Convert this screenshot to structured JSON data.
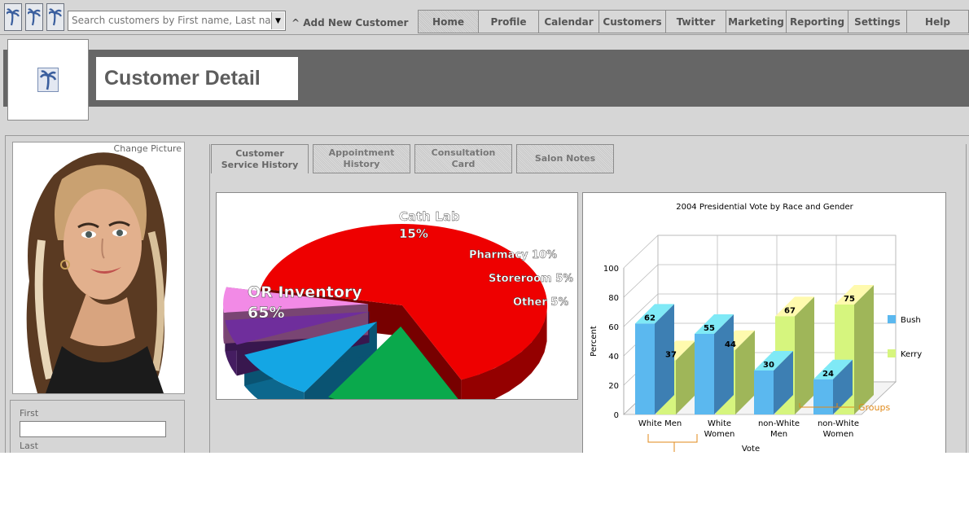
{
  "search": {
    "placeholder": "Search customers by First name, Last name"
  },
  "toolbar": {
    "add_customer_label": "Add New Customer",
    "add_icon": "caret-up-icon",
    "palm_icon": "palm-tree-icon"
  },
  "nav": [
    {
      "label": "Home",
      "active": true
    },
    {
      "label": "Profile"
    },
    {
      "label": "Calendar"
    },
    {
      "label": "Customers"
    },
    {
      "label": "Twitter"
    },
    {
      "label": "Marketing"
    },
    {
      "label": "Reporting"
    },
    {
      "label": "Settings"
    },
    {
      "label": "Help"
    }
  ],
  "page": {
    "title": "Customer Detail"
  },
  "profile": {
    "change_picture": "Change Picture",
    "first_label": "First",
    "last_label": "Last",
    "first_value": "",
    "last_value": ""
  },
  "tabs": [
    {
      "line1": "Customer",
      "line2": "Service History",
      "active": true
    },
    {
      "line1": "Appointment",
      "line2": "History"
    },
    {
      "line1": "Consultation",
      "line2": "Card"
    },
    {
      "line1": "",
      "line2": "Salon Notes"
    }
  ],
  "colors": {
    "or": "#ee0000",
    "cath": "#0aa94c",
    "pharmacy": "#14a6e4",
    "storeroom": "#6f2e9c",
    "other": "#f28ae6",
    "bush": "#5bb8ef",
    "kerry": "#d6f57e",
    "groups": "#e08a1a"
  },
  "chart_data": [
    {
      "type": "pie",
      "title": "",
      "slices": [
        {
          "label": "OR Inventory",
          "value": 65,
          "display": "65%"
        },
        {
          "label": "Cath Lab",
          "value": 15,
          "display": "15%"
        },
        {
          "label": "Pharmacy",
          "value": 10,
          "display": "10%"
        },
        {
          "label": "Storeroom",
          "value": 5,
          "display": "5%"
        },
        {
          "label": "Other",
          "value": 5,
          "display": "5%"
        }
      ]
    },
    {
      "type": "bar",
      "title": "2004 Presidential Vote by Race and Gender",
      "xlabel": "Vote",
      "ylabel": "Percent",
      "ylim": [
        0,
        100
      ],
      "yticks": [
        0,
        20,
        40,
        60,
        80,
        100
      ],
      "categories": [
        {
          "line1": "White Men",
          "line2": ""
        },
        {
          "line1": "White",
          "line2": "Women"
        },
        {
          "line1": "non-White",
          "line2": "Men"
        },
        {
          "line1": "non-White",
          "line2": "Women"
        }
      ],
      "series": [
        {
          "name": "Bush",
          "values": [
            62,
            55,
            30,
            24
          ]
        },
        {
          "name": "Kerry",
          "values": [
            37,
            44,
            67,
            75
          ]
        }
      ],
      "annotation": "Groups",
      "legend": "right",
      "grid": true
    }
  ]
}
